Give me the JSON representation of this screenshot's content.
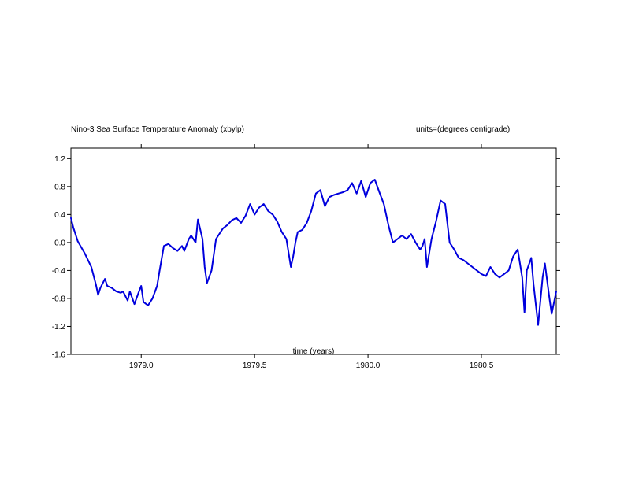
{
  "chart_data": {
    "type": "line",
    "title": "Nino-3 Sea Surface Temperature Anomaly (xbylp)",
    "units_label": "units=(degrees centigrade)",
    "xlabel": "time (years)",
    "ylabel": "",
    "xlim": [
      1978.69,
      1980.83
    ],
    "ylim": [
      -1.6,
      1.35
    ],
    "x_ticks": [
      {
        "value": 1979.0,
        "label": "1979.0"
      },
      {
        "value": 1979.5,
        "label": "1979.5"
      },
      {
        "value": 1980.0,
        "label": "1980.0"
      },
      {
        "value": 1980.5,
        "label": "1980.5"
      }
    ],
    "y_ticks": [
      {
        "value": 1.2,
        "label": "1.2"
      },
      {
        "value": 0.8,
        "label": "0.8"
      },
      {
        "value": 0.4,
        "label": "0.4"
      },
      {
        "value": 0.0,
        "label": "0.0"
      },
      {
        "value": -0.4,
        "label": "-0.4"
      },
      {
        "value": -0.8,
        "label": "-0.8"
      },
      {
        "value": -1.2,
        "label": "-1.2"
      },
      {
        "value": -1.6,
        "label": "-1.6"
      }
    ],
    "grid": false,
    "line_color": "#0000dd",
    "series": [
      {
        "x": [
          1978.69,
          1978.7,
          1978.72,
          1978.75,
          1978.78,
          1978.8,
          1978.81,
          1978.82,
          1978.84,
          1978.85,
          1978.87,
          1978.89,
          1978.91,
          1978.92,
          1978.94,
          1978.95,
          1978.97,
          1978.99,
          1979.0,
          1979.01,
          1979.03,
          1979.05,
          1979.07,
          1979.08,
          1979.1,
          1979.12,
          1979.14,
          1979.16,
          1979.18,
          1979.19,
          1979.21,
          1979.22,
          1979.24,
          1979.25,
          1979.27,
          1979.28,
          1979.29,
          1979.31,
          1979.33,
          1979.34,
          1979.36,
          1979.38,
          1979.4,
          1979.42,
          1979.44,
          1979.46,
          1979.48,
          1979.5,
          1979.52,
          1979.54,
          1979.56,
          1979.58,
          1979.6,
          1979.62,
          1979.64,
          1979.66,
          1979.67,
          1979.68,
          1979.69,
          1979.71,
          1979.73,
          1979.75,
          1979.77,
          1979.79,
          1979.81,
          1979.83,
          1979.85,
          1979.87,
          1979.89,
          1979.91,
          1979.93,
          1979.95,
          1979.97,
          1979.99,
          1980.01,
          1980.03,
          1980.05,
          1980.07,
          1980.09,
          1980.11,
          1980.13,
          1980.15,
          1980.17,
          1980.19,
          1980.21,
          1980.23,
          1980.24,
          1980.25,
          1980.26,
          1980.28,
          1980.3,
          1980.32,
          1980.34,
          1980.36,
          1980.38,
          1980.4,
          1980.42,
          1980.44,
          1980.46,
          1980.48,
          1980.5,
          1980.52,
          1980.54,
          1980.56,
          1980.58,
          1980.6,
          1980.62,
          1980.64,
          1980.66,
          1980.68,
          1980.69,
          1980.7,
          1980.72,
          1980.73,
          1980.75,
          1980.77,
          1980.78,
          1980.8,
          1980.81,
          1980.83
        ],
        "y": [
          0.35,
          0.22,
          0.02,
          -0.15,
          -0.35,
          -0.6,
          -0.75,
          -0.65,
          -0.52,
          -0.62,
          -0.65,
          -0.7,
          -0.72,
          -0.7,
          -0.83,
          -0.7,
          -0.88,
          -0.7,
          -0.62,
          -0.85,
          -0.9,
          -0.8,
          -0.62,
          -0.42,
          -0.05,
          -0.02,
          -0.08,
          -0.12,
          -0.05,
          -0.12,
          0.05,
          0.1,
          0.0,
          0.33,
          0.05,
          -0.35,
          -0.58,
          -0.4,
          0.05,
          0.1,
          0.2,
          0.25,
          0.32,
          0.35,
          0.28,
          0.38,
          0.55,
          0.4,
          0.5,
          0.55,
          0.45,
          0.4,
          0.3,
          0.15,
          0.05,
          -0.35,
          -0.2,
          0.0,
          0.15,
          0.18,
          0.28,
          0.45,
          0.7,
          0.75,
          0.52,
          0.65,
          0.68,
          0.7,
          0.72,
          0.75,
          0.85,
          0.7,
          0.88,
          0.65,
          0.85,
          0.9,
          0.72,
          0.55,
          0.25,
          0.0,
          0.05,
          0.1,
          0.05,
          0.12,
          0.0,
          -0.1,
          -0.05,
          0.05,
          -0.35,
          0.05,
          0.3,
          0.6,
          0.55,
          0.0,
          -0.1,
          -0.22,
          -0.25,
          -0.3,
          -0.35,
          -0.4,
          -0.45,
          -0.48,
          -0.35,
          -0.45,
          -0.5,
          -0.45,
          -0.4,
          -0.2,
          -0.1,
          -0.5,
          -1.0,
          -0.4,
          -0.22,
          -0.6,
          -1.18,
          -0.5,
          -0.3,
          -0.8,
          -1.02,
          -0.7
        ]
      }
    ]
  }
}
